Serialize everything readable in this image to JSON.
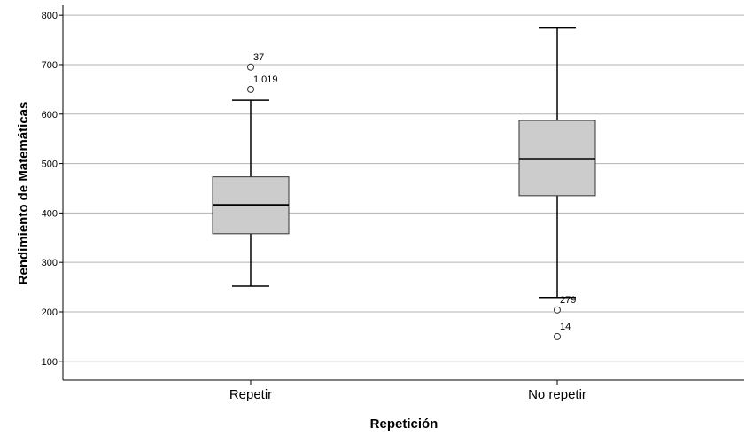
{
  "chart_data": {
    "type": "boxplot",
    "xlabel": "Repetición",
    "ylabel": "Rendimiento de Matemáticas",
    "ylim": [
      62,
      820
    ],
    "yticks": [
      100,
      200,
      300,
      400,
      500,
      600,
      700,
      800
    ],
    "grid": true,
    "box_color": "#cccccc",
    "categories": [
      "Repetir",
      "No repetir"
    ],
    "boxes": [
      {
        "category": "Repetir",
        "whisker_low": 252,
        "q1": 358,
        "median": 416,
        "q3": 473,
        "whisker_high": 628,
        "outliers": [
          {
            "value": 650,
            "label": "1.019"
          },
          {
            "value": 695,
            "label": "37"
          }
        ]
      },
      {
        "category": "No repetir",
        "whisker_low": 229,
        "q1": 435,
        "median": 509,
        "q3": 587,
        "whisker_high": 774,
        "outliers": [
          {
            "value": 204,
            "label": "279"
          },
          {
            "value": 150,
            "label": "14"
          }
        ]
      }
    ]
  }
}
